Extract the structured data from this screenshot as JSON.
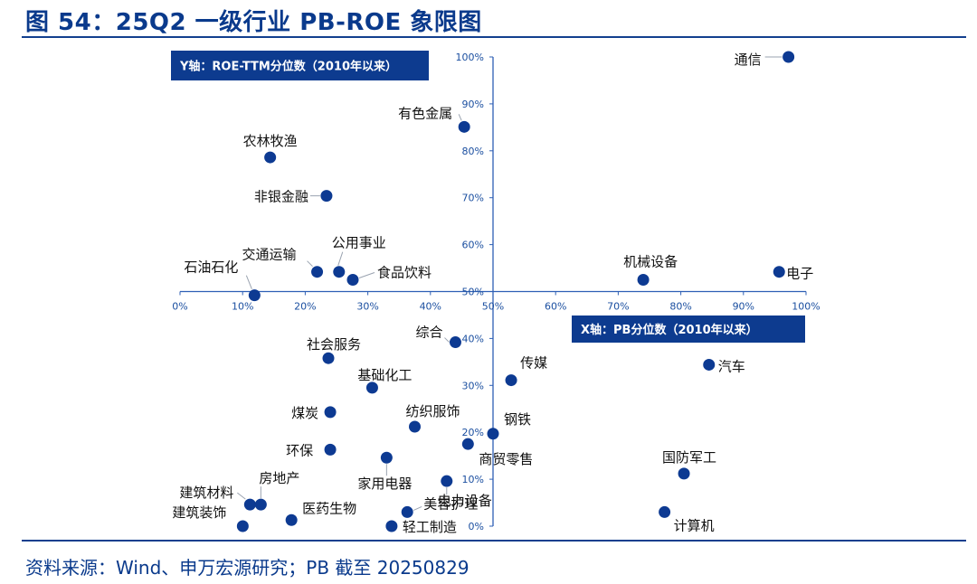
{
  "title": "图 54：25Q2 一级行业 PB-ROE 象限图",
  "source": "资料来源：Wind、申万宏源研究；PB 截至 20250829",
  "colors": {
    "accent": "#0a3a8c",
    "point": "#0d3a92",
    "axis": "#2e5fb5"
  },
  "chart_data": {
    "type": "scatter",
    "title": "",
    "xlabel": "X轴：PB分位数（2010年以来）",
    "ylabel": "Y轴：ROE-TTM分位数（2010年以来）",
    "xlim": [
      0,
      100
    ],
    "ylim": [
      0,
      100
    ],
    "x_crosses_at_y": 50,
    "y_crosses_at_x": 50,
    "x_ticks": [
      "0%",
      "10%",
      "20%",
      "30%",
      "40%",
      "50%",
      "60%",
      "70%",
      "80%",
      "90%",
      "100%"
    ],
    "y_ticks": [
      "0%",
      "10%",
      "20%",
      "30%",
      "40%",
      "50%",
      "60%",
      "70%",
      "80%",
      "90%",
      "100%"
    ],
    "unit": "%",
    "grid": false,
    "points": [
      {
        "label": "通信",
        "x": 97.2,
        "y": 100.0
      },
      {
        "label": "有色金属",
        "x": 45.4,
        "y": 85.1
      },
      {
        "label": "农林牧渔",
        "x": 14.4,
        "y": 78.6
      },
      {
        "label": "非银金融",
        "x": 23.4,
        "y": 70.4
      },
      {
        "label": "公用事业",
        "x": 25.4,
        "y": 54.2
      },
      {
        "label": "交通运输",
        "x": 21.9,
        "y": 54.2
      },
      {
        "label": "食品饮料",
        "x": 27.6,
        "y": 52.5
      },
      {
        "label": "石油石化",
        "x": 11.9,
        "y": 49.2
      },
      {
        "label": "机械设备",
        "x": 74.0,
        "y": 52.5
      },
      {
        "label": "电子",
        "x": 95.7,
        "y": 54.2
      },
      {
        "label": "综合",
        "x": 44.0,
        "y": 39.2
      },
      {
        "label": "社会服务",
        "x": 23.7,
        "y": 35.8
      },
      {
        "label": "基础化工",
        "x": 30.7,
        "y": 29.5
      },
      {
        "label": "传媒",
        "x": 52.9,
        "y": 31.1
      },
      {
        "label": "汽车",
        "x": 84.5,
        "y": 34.4
      },
      {
        "label": "煤炭",
        "x": 24.0,
        "y": 24.3
      },
      {
        "label": "纺织服饰",
        "x": 37.5,
        "y": 21.2
      },
      {
        "label": "钢铁",
        "x": 50.0,
        "y": 19.7
      },
      {
        "label": "商贸零售",
        "x": 46.0,
        "y": 17.5
      },
      {
        "label": "环保",
        "x": 24.0,
        "y": 16.3
      },
      {
        "label": "家用电器",
        "x": 33.0,
        "y": 14.6
      },
      {
        "label": "电力设备",
        "x": 42.6,
        "y": 9.6
      },
      {
        "label": "国防军工",
        "x": 80.5,
        "y": 11.2
      },
      {
        "label": "建筑材料",
        "x": 11.9,
        "y": 4.6
      },
      {
        "label": "房地产",
        "x": 11.9,
        "y": 4.6
      },
      {
        "label": "医药生物",
        "x": 17.8,
        "y": 1.3
      },
      {
        "label": "美容护理",
        "x": 36.3,
        "y": 3.0
      },
      {
        "label": "建筑装饰",
        "x": 10.6,
        "y": 0.0
      },
      {
        "label": "轻工制造",
        "x": 33.8,
        "y": 0.0
      },
      {
        "label": "计算机",
        "x": 77.4,
        "y": 3.0
      }
    ]
  }
}
